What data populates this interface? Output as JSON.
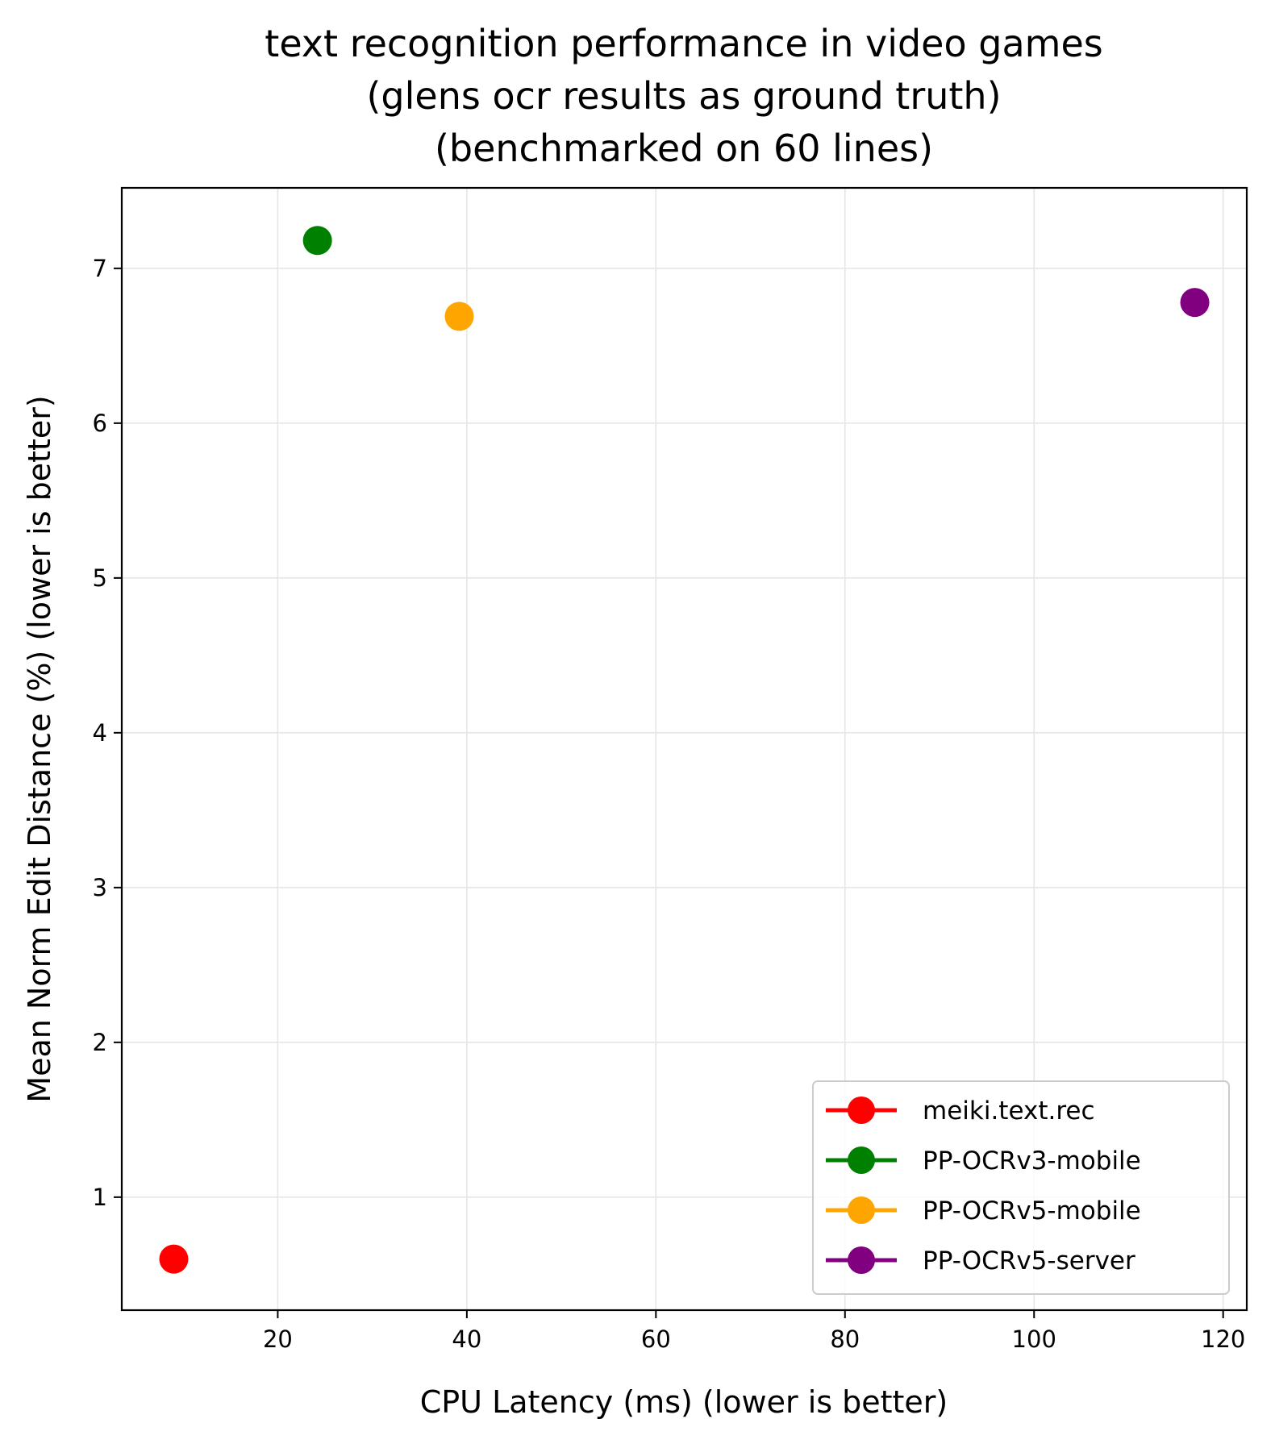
{
  "chart_data": {
    "type": "scatter",
    "title": [
      "text recognition performance in video games",
      "(glens ocr results as ground truth)",
      "(benchmarked on 60 lines)"
    ],
    "xlabel": "CPU Latency (ms) (lower is better)",
    "ylabel": "Mean Norm Edit Distance (%) (lower is better)",
    "xlim": [
      3.5,
      122.5
    ],
    "ylim": [
      0.27,
      7.52
    ],
    "xticks": [
      20,
      40,
      60,
      80,
      100,
      120
    ],
    "yticks": [
      1,
      2,
      3,
      4,
      5,
      6,
      7
    ],
    "grid": true,
    "legend_position": "lower right",
    "series": [
      {
        "name": "meiki.text.rec",
        "color": "#ff0000",
        "x": [
          9.0
        ],
        "y": [
          0.6
        ]
      },
      {
        "name": "PP-OCRv3-mobile",
        "color": "#008000",
        "x": [
          24.2
        ],
        "y": [
          7.18
        ]
      },
      {
        "name": "PP-OCRv5-mobile",
        "color": "#ffa500",
        "x": [
          39.2
        ],
        "y": [
          6.69
        ]
      },
      {
        "name": "PP-OCRv5-server",
        "color": "#800080",
        "x": [
          117.0
        ],
        "y": [
          6.78
        ]
      }
    ]
  }
}
